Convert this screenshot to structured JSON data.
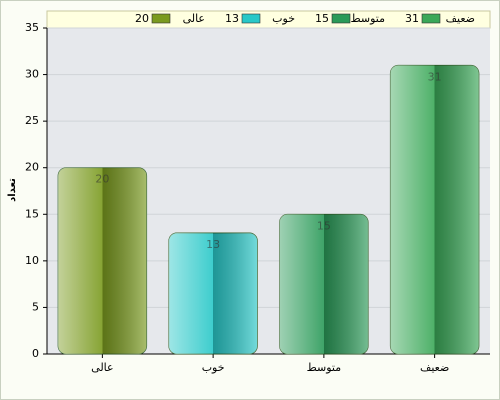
{
  "chart_data": {
    "type": "bar",
    "y_label": "تعداد",
    "categories": [
      "عالی",
      "خوب",
      "متوسط",
      "ضعیف"
    ],
    "values": [
      20,
      13,
      15,
      31
    ],
    "colors": [
      "#7a9a1e",
      "#28c8c8",
      "#2a9a58",
      "#3aa858"
    ],
    "ylim": [
      0,
      35
    ],
    "yticks": [
      0,
      5,
      10,
      15,
      20,
      25,
      30,
      35
    ],
    "grid": true,
    "legend": "top"
  }
}
